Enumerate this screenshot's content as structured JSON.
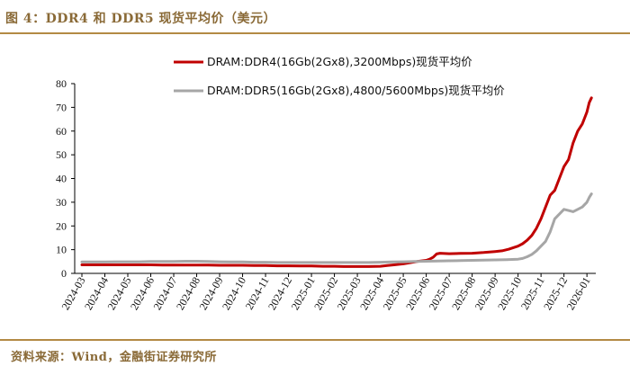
{
  "header": {
    "title": "图 4：DDR4 和 DDR5 现货平均价（美元）"
  },
  "footer": {
    "source": "资料来源：Wind，金融街证券研究所"
  },
  "chart_data": {
    "type": "line",
    "title": "图 4：DDR4 和 DDR5 现货平均价（美元）",
    "xlabel": "",
    "ylabel": "",
    "ylim": [
      0,
      80
    ],
    "yticks": [
      0,
      10,
      20,
      30,
      40,
      50,
      60,
      70,
      80
    ],
    "categories": [
      "2024-03",
      "2024-04",
      "2024-05",
      "2024-06",
      "2024-07",
      "2024-08",
      "2024-09",
      "2024-10",
      "2024-11",
      "2024-12",
      "2025-01",
      "2025-02",
      "2025-03",
      "2025-04",
      "2025-05",
      "2025-06",
      "2025-07",
      "2025-08",
      "2025-09",
      "2025-10",
      "2025-11",
      "2025-12",
      "2026-01"
    ],
    "legend_position": "top-right",
    "series": [
      {
        "name": "DRAM:DDR4(16Gb(2Gx8),3200Mbps)现货平均价",
        "color": "#c00000",
        "x": [
          0,
          0.5,
          1,
          1.5,
          2,
          2.5,
          3,
          3.5,
          4,
          4.5,
          5,
          5.5,
          6,
          6.5,
          7,
          7.5,
          8,
          8.5,
          9,
          9.5,
          10,
          10.5,
          11,
          11.5,
          12,
          12.5,
          13,
          13.3,
          13.6,
          14,
          14.3,
          14.6,
          15,
          15.15,
          15.3,
          15.45,
          15.6,
          16,
          16.5,
          17,
          17.5,
          18,
          18.3,
          18.6,
          19,
          19.2,
          19.4,
          19.6,
          19.8,
          20,
          20.2,
          20.4,
          20.6,
          20.8,
          21,
          21.2,
          21.4,
          21.6,
          21.8,
          22,
          22.1,
          22.2
        ],
        "values": [
          3.6,
          3.6,
          3.6,
          3.6,
          3.6,
          3.6,
          3.6,
          3.5,
          3.5,
          3.5,
          3.5,
          3.5,
          3.4,
          3.4,
          3.4,
          3.3,
          3.3,
          3.2,
          3.2,
          3.1,
          3.1,
          3.0,
          3.0,
          2.9,
          2.9,
          2.9,
          3.0,
          3.3,
          3.6,
          4.0,
          4.5,
          5.0,
          5.5,
          6.0,
          6.8,
          8.2,
          8.5,
          8.3,
          8.4,
          8.5,
          8.8,
          9.2,
          9.5,
          10.2,
          11.5,
          12.5,
          14,
          16,
          19,
          23,
          28,
          33,
          35,
          40,
          45,
          48,
          55,
          60,
          63,
          68,
          72,
          74
        ]
      },
      {
        "name": "DRAM:DDR5(16Gb(2Gx8),4800/5600Mbps)现货平均价",
        "color": "#a6a6a6",
        "x": [
          0,
          0.5,
          1,
          1.5,
          2,
          2.5,
          3,
          3.5,
          4,
          4.5,
          5,
          5.5,
          6,
          6.5,
          7,
          7.5,
          8,
          8.5,
          9,
          9.5,
          10,
          10.5,
          11,
          11.5,
          12,
          12.5,
          13,
          13.5,
          14,
          14.5,
          15,
          15.5,
          16,
          16.5,
          17,
          17.5,
          18,
          18.5,
          19,
          19.2,
          19.4,
          19.6,
          19.8,
          20,
          20.2,
          20.4,
          20.6,
          20.8,
          21,
          21.2,
          21.4,
          21.6,
          21.8,
          22,
          22.1,
          22.2
        ],
        "values": [
          4.8,
          4.8,
          4.8,
          4.9,
          4.9,
          4.9,
          5.0,
          5.0,
          5.0,
          5.1,
          5.1,
          5.0,
          4.9,
          4.8,
          4.8,
          4.7,
          4.7,
          4.6,
          4.6,
          4.6,
          4.6,
          4.6,
          4.6,
          4.6,
          4.6,
          4.6,
          4.7,
          4.8,
          4.9,
          5.0,
          5.1,
          5.2,
          5.3,
          5.4,
          5.5,
          5.6,
          5.7,
          5.8,
          6.0,
          6.3,
          7.0,
          8.0,
          9.5,
          11.5,
          13.5,
          17.5,
          23,
          25,
          27,
          26.5,
          26,
          27,
          28,
          30,
          32,
          33.5
        ]
      }
    ]
  }
}
